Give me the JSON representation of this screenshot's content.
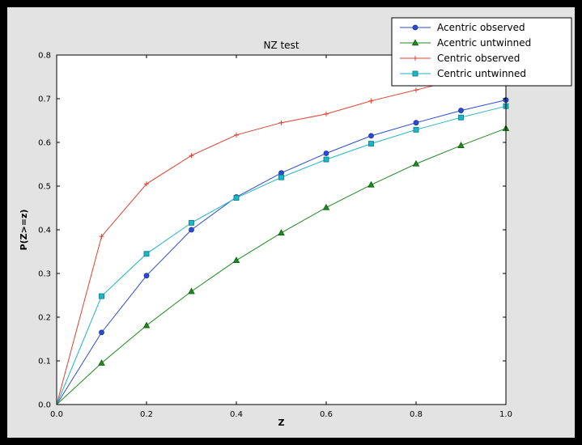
{
  "window": {
    "outer_background": "#000000",
    "figure_background": "#e3e3e3",
    "plot_background": "#ffffff",
    "frame_color": "#000000"
  },
  "chart_data": {
    "type": "line",
    "title": "NZ test",
    "xlabel": "Z",
    "ylabel": "P(Z>=z)",
    "xlim": [
      0.0,
      1.0
    ],
    "ylim": [
      0.0,
      0.8
    ],
    "grid": false,
    "legend_position": "upper right",
    "xticks": [
      0.0,
      0.2,
      0.4,
      0.6,
      0.8,
      1.0
    ],
    "xtick_labels": [
      "0.0",
      "0.2",
      "0.4",
      "0.6",
      "0.8",
      "1.0"
    ],
    "yticks": [
      0.0,
      0.1,
      0.2,
      0.3,
      0.4,
      0.5,
      0.6,
      0.7,
      0.8
    ],
    "ytick_labels": [
      "0.0",
      "0.1",
      "0.2",
      "0.3",
      "0.4",
      "0.5",
      "0.6",
      "0.7",
      "0.8"
    ],
    "x": [
      0.0,
      0.1,
      0.2,
      0.3,
      0.4,
      0.5,
      0.6,
      0.7,
      0.8,
      0.9,
      1.0
    ],
    "series": [
      {
        "name": "Acentric observed",
        "color": "#2a4bd4",
        "edge_color": "#16309a",
        "marker": "circle",
        "values": [
          0.0,
          0.165,
          0.295,
          0.4,
          0.475,
          0.53,
          0.575,
          0.615,
          0.645,
          0.673,
          0.697
        ]
      },
      {
        "name": "Acentric untwinned",
        "color": "#1f8a1f",
        "edge_color": "#0f5c0f",
        "marker": "triangle",
        "values": [
          0.0,
          0.095,
          0.181,
          0.259,
          0.33,
          0.393,
          0.451,
          0.503,
          0.551,
          0.593,
          0.632
        ]
      },
      {
        "name": "Centric observed",
        "color": "#e0402e",
        "edge_color": "#e0402e",
        "marker": "plus",
        "values": [
          0.0,
          0.385,
          0.505,
          0.57,
          0.617,
          0.645,
          0.665,
          0.695,
          0.72,
          0.745,
          0.765
        ]
      },
      {
        "name": "Centric untwinned",
        "color": "#1fb5c5",
        "edge_color": "#0b8294",
        "marker": "square",
        "values": [
          0.0,
          0.248,
          0.345,
          0.416,
          0.473,
          0.52,
          0.561,
          0.597,
          0.629,
          0.657,
          0.683
        ]
      }
    ]
  }
}
